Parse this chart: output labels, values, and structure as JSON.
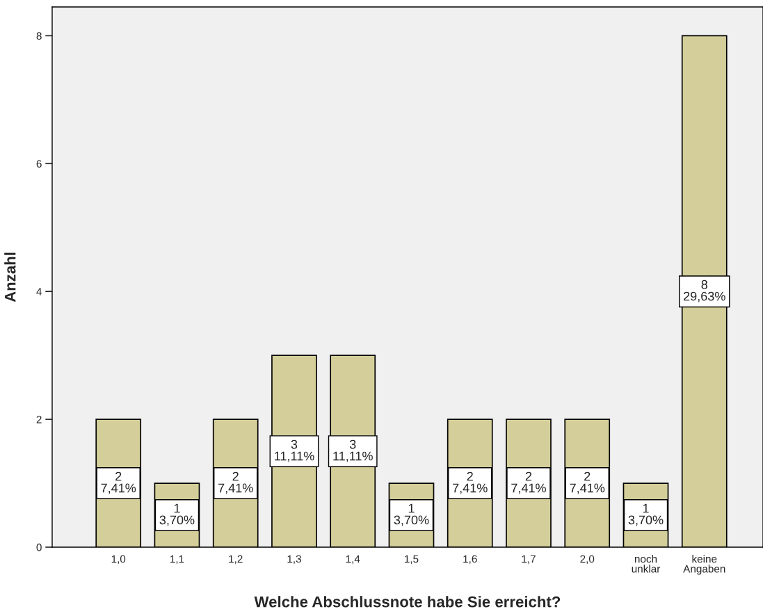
{
  "chart_data": {
    "type": "bar",
    "xlabel": "Welche Abschlussnote habe Sie erreicht?",
    "ylabel": "Anzahl",
    "categories": [
      "1,0",
      "1,1",
      "1,2",
      "1,3",
      "1,4",
      "1,5",
      "1,6",
      "1,7",
      "2,0",
      "noch\nunklar",
      "keine\nAngaben"
    ],
    "values": [
      2,
      1,
      2,
      3,
      3,
      1,
      2,
      2,
      2,
      1,
      8
    ],
    "value_labels": [
      "2\n7,41%",
      "1\n3,70%",
      "2\n7,41%",
      "3\n11,11%",
      "3\n11,11%",
      "1\n3,70%",
      "2\n7,41%",
      "2\n7,41%",
      "2\n7,41%",
      "1\n3,70%",
      "8\n29,63%"
    ],
    "color": "#d4cf9a",
    "ylim": [
      0,
      8.45
    ],
    "yticks": [
      0,
      2,
      4,
      6,
      8
    ],
    "grid": false,
    "legend": false
  }
}
